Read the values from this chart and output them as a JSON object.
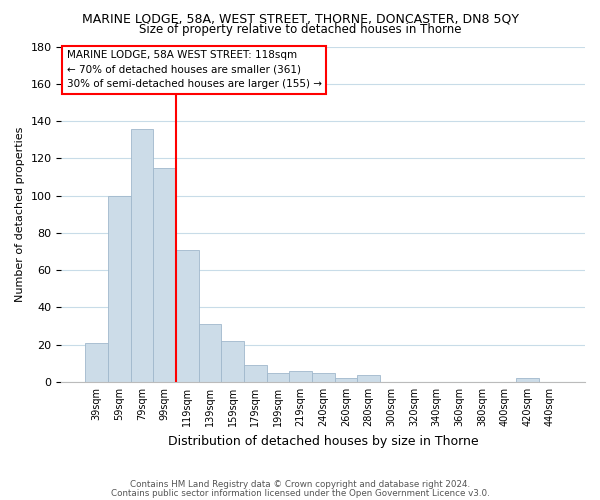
{
  "title": "MARINE LODGE, 58A, WEST STREET, THORNE, DONCASTER, DN8 5QY",
  "subtitle": "Size of property relative to detached houses in Thorne",
  "xlabel": "Distribution of detached houses by size in Thorne",
  "ylabel": "Number of detached properties",
  "bar_labels": [
    "39sqm",
    "59sqm",
    "79sqm",
    "99sqm",
    "119sqm",
    "139sqm",
    "159sqm",
    "179sqm",
    "199sqm",
    "219sqm",
    "240sqm",
    "260sqm",
    "280sqm",
    "300sqm",
    "320sqm",
    "340sqm",
    "360sqm",
    "380sqm",
    "400sqm",
    "420sqm",
    "440sqm"
  ],
  "bar_values": [
    21,
    100,
    136,
    115,
    71,
    31,
    22,
    9,
    5,
    6,
    5,
    2,
    4,
    0,
    0,
    0,
    0,
    0,
    0,
    2,
    0
  ],
  "bar_color": "#ccdce8",
  "bar_edge_color": "#a0b8cc",
  "vline_color": "red",
  "vline_x_index": 3.5,
  "ylim": [
    0,
    180
  ],
  "yticks": [
    0,
    20,
    40,
    60,
    80,
    100,
    120,
    140,
    160,
    180
  ],
  "annotation_title": "MARINE LODGE, 58A WEST STREET: 118sqm",
  "annotation_line1": "← 70% of detached houses are smaller (361)",
  "annotation_line2": "30% of semi-detached houses are larger (155) →",
  "footer1": "Contains HM Land Registry data © Crown copyright and database right 2024.",
  "footer2": "Contains public sector information licensed under the Open Government Licence v3.0."
}
